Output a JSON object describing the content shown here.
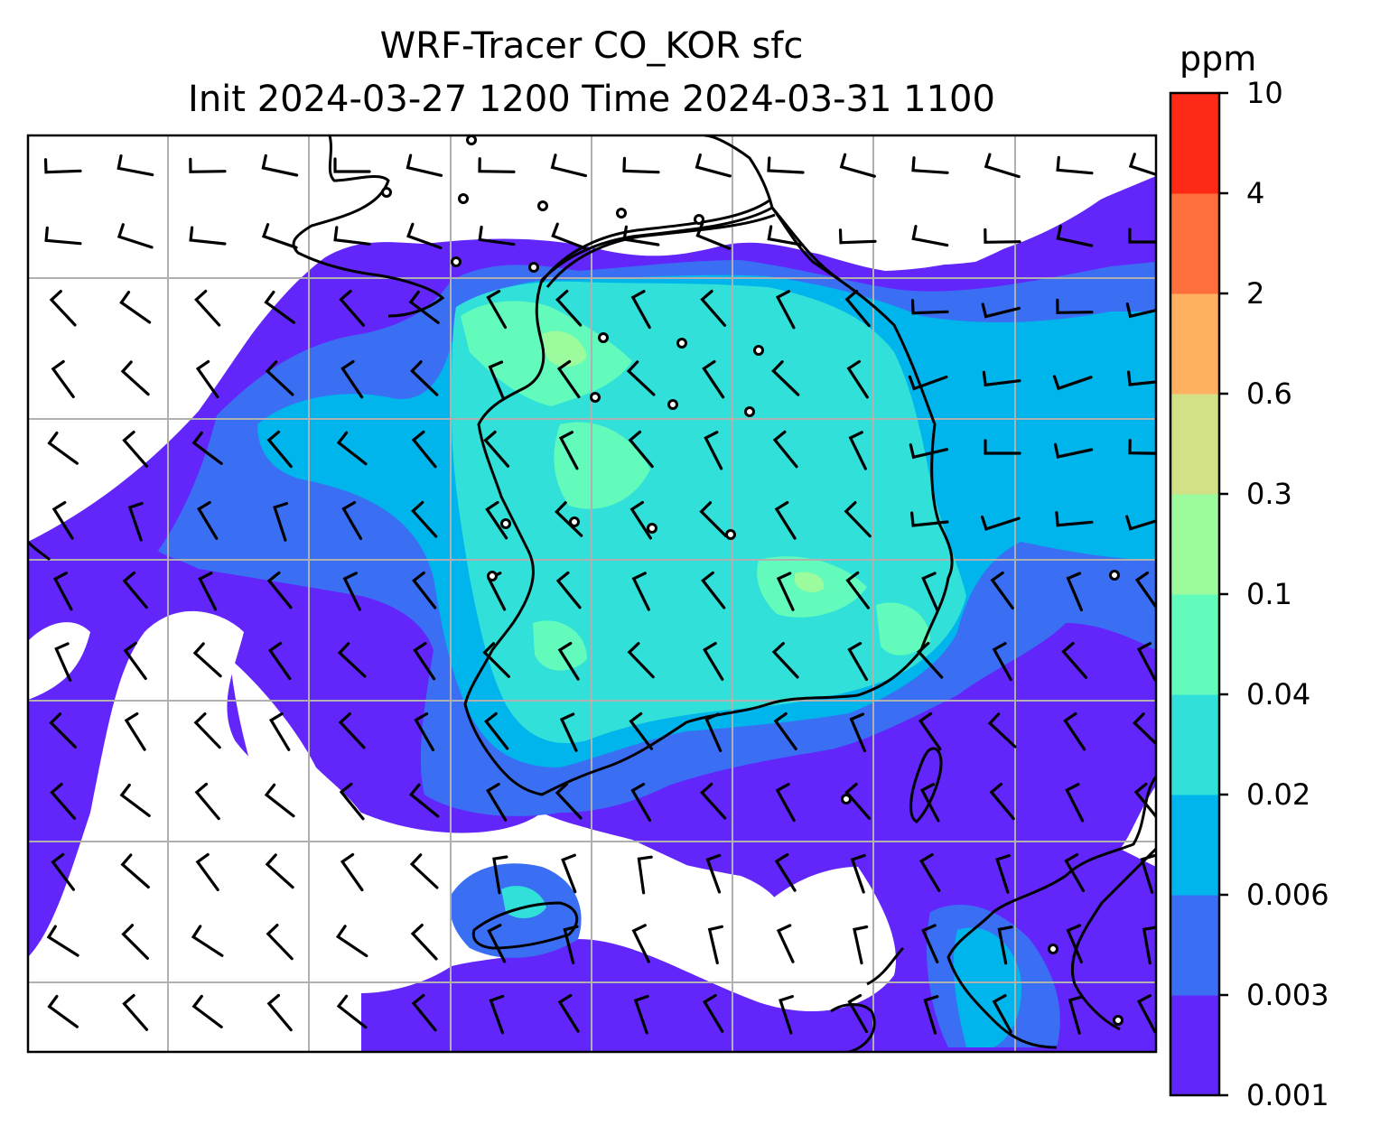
{
  "figure": {
    "title_line1": "WRF-Tracer CO_KOR sfc",
    "title_line2": "Init 2024-03-27 1200 Time 2024-03-31 1100",
    "colorbar_unit": "ppm",
    "colorbar_levels": [
      "0.001",
      "0.003",
      "0.006",
      "0.02",
      "0.04",
      "0.1",
      "0.3",
      "0.6",
      "2",
      "4",
      "10"
    ],
    "colorbar_colors": [
      "#6226fb",
      "#3a6ff4",
      "#00b4ec",
      "#31e0d8",
      "#62fbbb",
      "#9cfb9c",
      "#d2e185",
      "#ffb060",
      "#ff6f3b",
      "#ff2a15"
    ],
    "background_color": "#ffffff",
    "coastline_color": "#000000",
    "gridline_color": "#b0b0b0",
    "wind_symbol": "wind-barb",
    "calm_symbol": "calm-circle"
  }
}
